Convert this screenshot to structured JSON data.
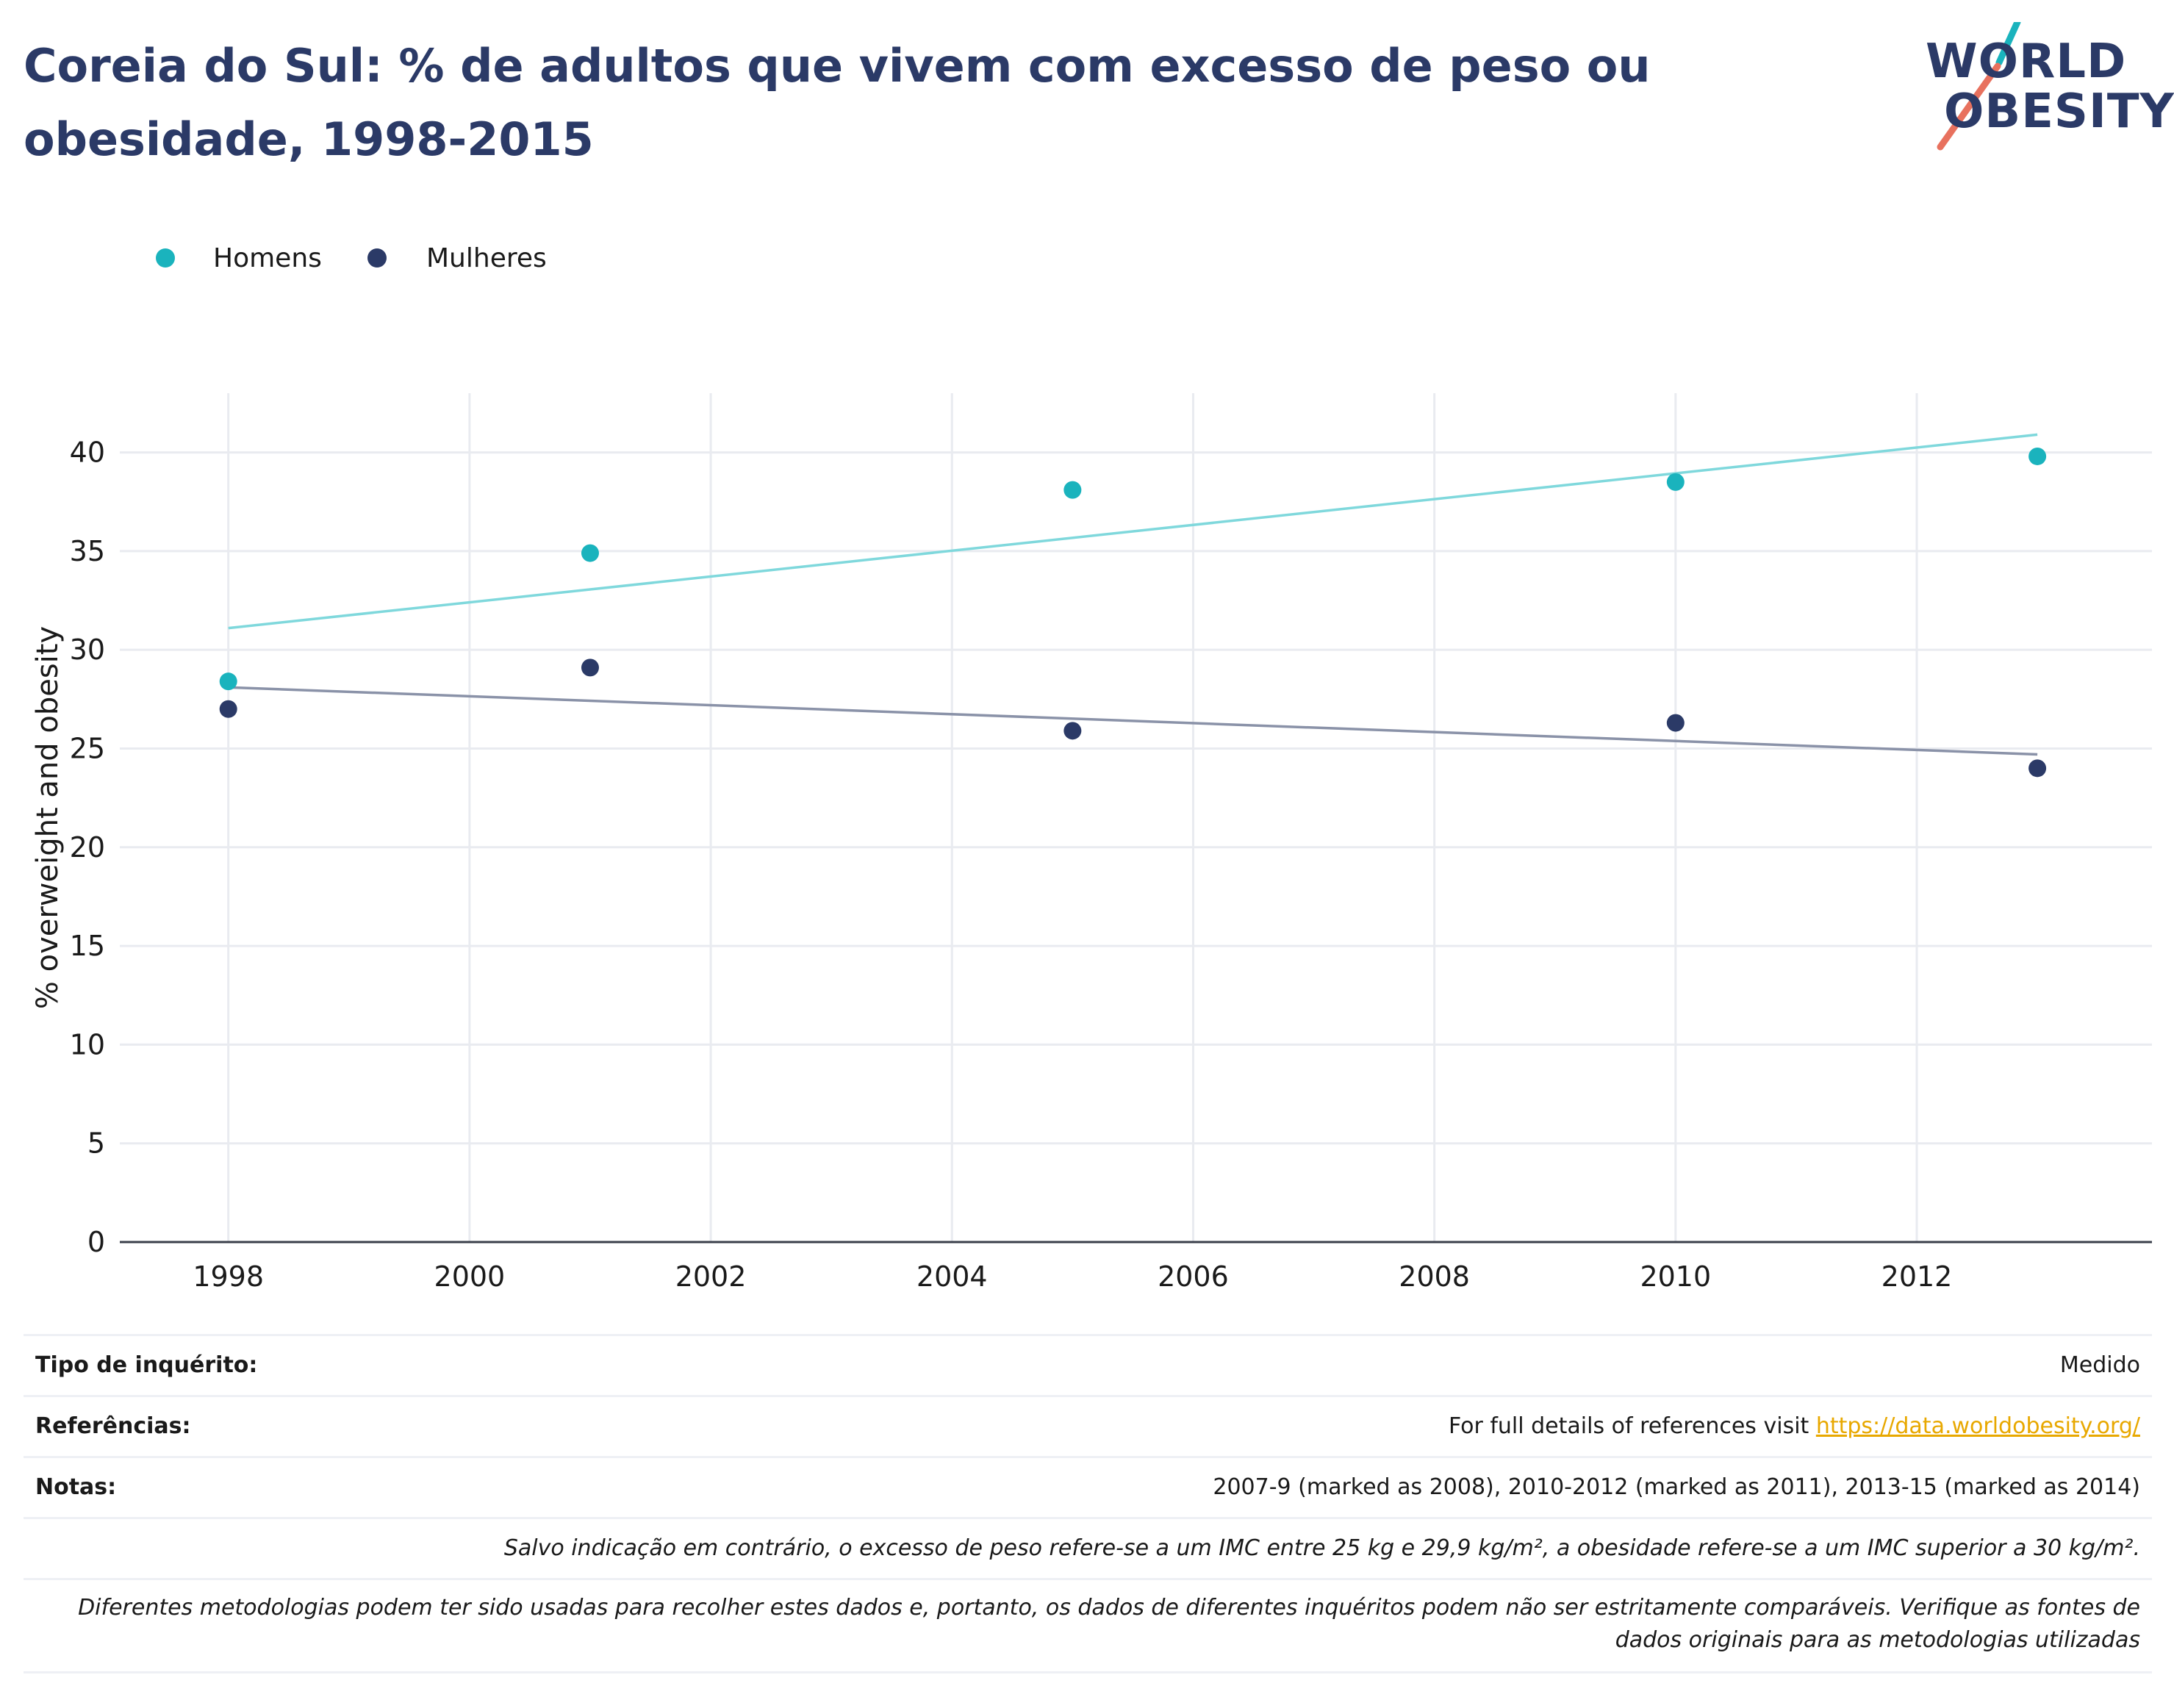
{
  "title": "Coreia do Sul: % de adultos que vivem com excesso de peso ou obesidade, 1998-2015",
  "logo": {
    "line1": "WORLD",
    "line2": "OBESITY"
  },
  "colors": {
    "men": "#1ab3bd",
    "women": "#2b3a67",
    "men_trend": "#7fd8dc",
    "women_trend": "#8a92a8",
    "title": "#2b3a67",
    "link": "#e8a800"
  },
  "legend": [
    {
      "label": "Homens",
      "color": "#1ab3bd"
    },
    {
      "label": "Mulheres",
      "color": "#2b3a67"
    }
  ],
  "chart_data": {
    "type": "scatter",
    "title": "Coreia do Sul: % de adultos que vivem com excesso de peso ou obesidade, 1998-2015",
    "ylabel": "% overweight and obesity",
    "xlabel": "",
    "xlim": [
      1997.1,
      2013.95
    ],
    "ylim": [
      0,
      43
    ],
    "xticks": [
      "1998",
      "2000",
      "2002",
      "2004",
      "2006",
      "2008",
      "2010",
      "2012"
    ],
    "yticks": [
      "0",
      "5",
      "10",
      "15",
      "20",
      "25",
      "30",
      "35",
      "40"
    ],
    "grid": true,
    "legend_position": "top-left",
    "series": [
      {
        "name": "Homens",
        "x": [
          1998,
          2001,
          2005,
          2010,
          2013
        ],
        "y": [
          28.4,
          34.9,
          38.1,
          38.5,
          39.8
        ],
        "trend": {
          "x": [
            1998,
            2013
          ],
          "y": [
            31.1,
            40.9
          ]
        }
      },
      {
        "name": "Mulheres",
        "x": [
          1998,
          2001,
          2005,
          2010,
          2013
        ],
        "y": [
          27.0,
          29.1,
          25.9,
          26.3,
          24.0
        ],
        "trend": {
          "x": [
            1998,
            2013
          ],
          "y": [
            28.1,
            24.7
          ]
        }
      }
    ]
  },
  "info": {
    "survey_key": "Tipo de inquérito:",
    "survey_val": "Medido",
    "refs_key": "Referências:",
    "refs_text": "For full details of references visit ",
    "refs_link": "https://data.worldobesity.org/",
    "notes_key": "Notas:",
    "notes_val": "2007-9 (marked as 2008), 2010-2012 (marked as 2011), 2013-15 (marked as 2014)",
    "bmi_note": "Salvo indicação em contrário, o excesso de peso refere-se a um IMC entre 25 kg e 29,9 kg/m², a obesidade refere-se a um IMC superior a 30 kg/m².",
    "method_note": "Diferentes metodologias podem ter sido usadas para recolher estes dados e, portanto, os dados de diferentes inquéritos podem não ser estritamente comparáveis. Verifique as fontes de dados originais para as metodologias utilizadas"
  }
}
